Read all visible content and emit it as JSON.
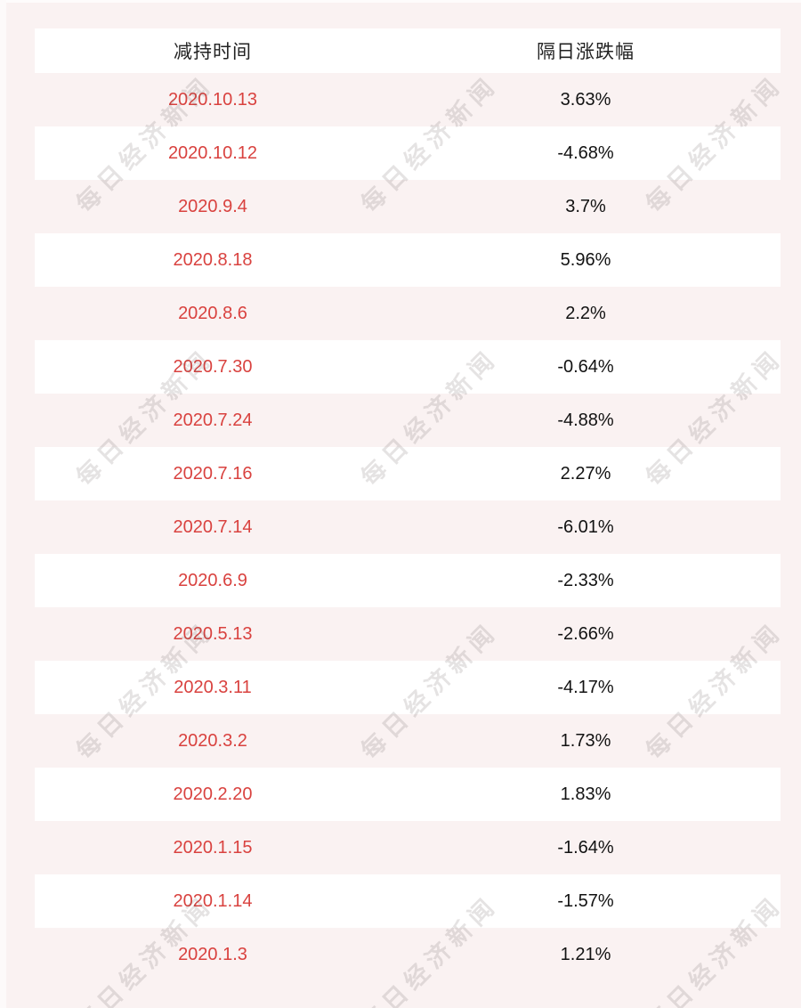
{
  "page": {
    "background_color": "#faf2f2",
    "row_highlight_color": "#ffffff",
    "date_color": "#d9423f",
    "value_color": "#121212",
    "header_color": "#222222",
    "watermark_color": "rgba(96,78,78,0.16)"
  },
  "watermark": {
    "text": "每日经济新闻"
  },
  "table": {
    "headers": [
      "减持时间",
      "隔日涨跌幅"
    ],
    "rows": [
      {
        "date": "2020.10.13",
        "change": "3.63%"
      },
      {
        "date": "2020.10.12",
        "change": "-4.68%"
      },
      {
        "date": "2020.9.4",
        "change": "3.7%"
      },
      {
        "date": "2020.8.18",
        "change": "5.96%"
      },
      {
        "date": "2020.8.6",
        "change": "2.2%"
      },
      {
        "date": "2020.7.30",
        "change": "-0.64%"
      },
      {
        "date": "2020.7.24",
        "change": "-4.88%"
      },
      {
        "date": "2020.7.16",
        "change": "2.27%"
      },
      {
        "date": "2020.7.14",
        "change": "-6.01%"
      },
      {
        "date": "2020.6.9",
        "change": "-2.33%"
      },
      {
        "date": "2020.5.13",
        "change": "-2.66%"
      },
      {
        "date": "2020.3.11",
        "change": "-4.17%"
      },
      {
        "date": "2020.3.2",
        "change": "1.73%"
      },
      {
        "date": "2020.2.20",
        "change": "1.83%"
      },
      {
        "date": "2020.1.15",
        "change": "-1.64%"
      },
      {
        "date": "2020.1.14",
        "change": "-1.57%"
      },
      {
        "date": "2020.1.3",
        "change": "1.21%"
      }
    ]
  },
  "chart_data": {
    "type": "table",
    "columns": [
      "减持时间",
      "隔日涨跌幅"
    ],
    "rows": [
      [
        "2020.10.13",
        "3.63%"
      ],
      [
        "2020.10.12",
        "-4.68%"
      ],
      [
        "2020.9.4",
        "3.7%"
      ],
      [
        "2020.8.18",
        "5.96%"
      ],
      [
        "2020.8.6",
        "2.2%"
      ],
      [
        "2020.7.30",
        "-0.64%"
      ],
      [
        "2020.7.24",
        "-4.88%"
      ],
      [
        "2020.7.16",
        "2.27%"
      ],
      [
        "2020.7.14",
        "-6.01%"
      ],
      [
        "2020.6.9",
        "-2.33%"
      ],
      [
        "2020.5.13",
        "-2.66%"
      ],
      [
        "2020.3.11",
        "-4.17%"
      ],
      [
        "2020.3.2",
        "1.73%"
      ],
      [
        "2020.2.20",
        "1.83%"
      ],
      [
        "2020.1.15",
        "-1.64%"
      ],
      [
        "2020.1.14",
        "-1.57%"
      ],
      [
        "2020.1.3",
        "1.21%"
      ]
    ],
    "title": "",
    "notes": "alternating row stripes, dates in red, diagonal watermark overlay"
  }
}
